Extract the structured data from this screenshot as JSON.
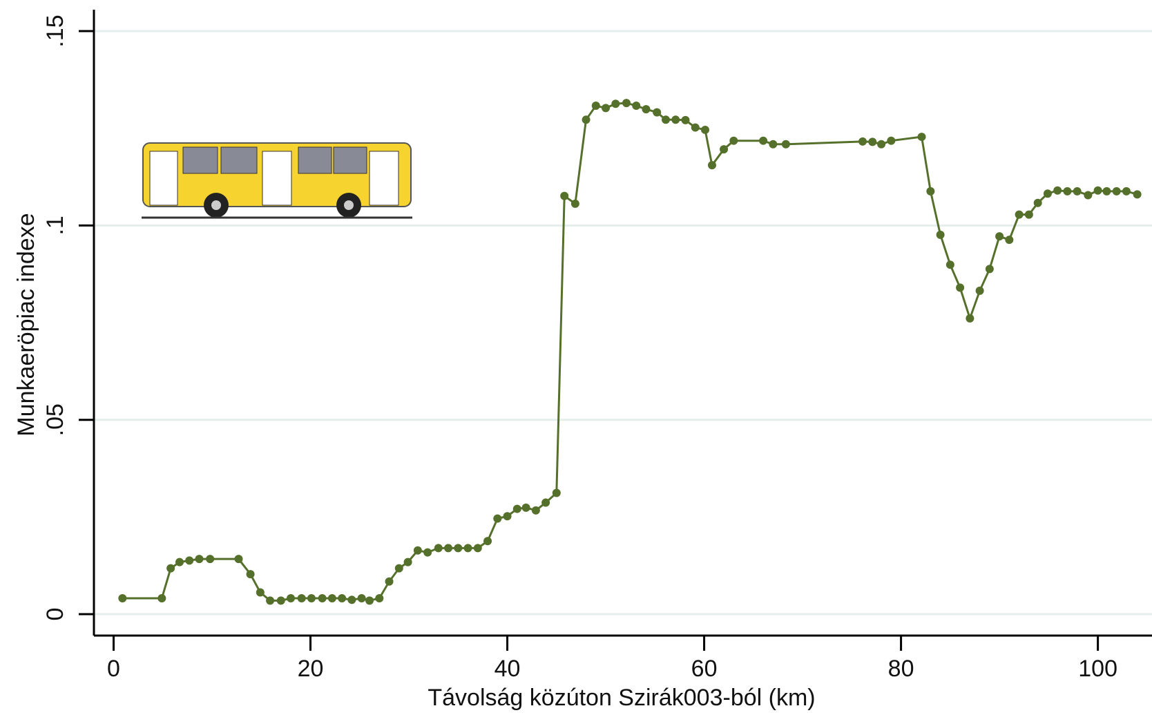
{
  "chart_data": {
    "type": "line",
    "x_label": "Távolság közúton Szirák003-ból (km)",
    "y_label": "Munkaeröpiac indexe",
    "x": [
      0.9,
      4.9,
      5.8,
      6.7,
      7.7,
      8.7,
      9.8,
      12.7,
      13.9,
      14.9,
      15.9,
      17.0,
      18.0,
      19.1,
      20.1,
      21.2,
      22.2,
      23.2,
      24.2,
      25.2,
      26.0,
      27.0,
      28.0,
      29.0,
      29.9,
      30.9,
      31.9,
      33.0,
      34.0,
      35.0,
      36.0,
      37.0,
      38.0,
      39.0,
      40.0,
      41.0,
      41.9,
      42.9,
      43.9,
      45.0,
      45.8,
      46.9,
      48.0,
      49.0,
      50.0,
      51.0,
      52.1,
      53.1,
      54.1,
      55.2,
      56.1,
      57.1,
      58.1,
      59.1,
      60.1,
      60.8,
      62.0,
      63.0,
      66.0,
      67.0,
      68.3,
      76.1,
      77.1,
      78.0,
      79.0,
      82.1,
      83.0,
      84.0,
      85.0,
      86.0,
      87.0,
      88.0,
      89.0,
      90.0,
      91.0,
      92.0,
      93.0,
      93.9,
      94.9,
      95.9,
      96.9,
      97.9,
      99.0,
      100.0,
      100.9,
      101.9,
      102.9,
      104.0
    ],
    "values": [
      0.0041,
      0.0041,
      0.0118,
      0.0134,
      0.0138,
      0.0142,
      0.0142,
      0.0142,
      0.0103,
      0.0056,
      0.0035,
      0.0035,
      0.0041,
      0.0041,
      0.0041,
      0.0041,
      0.0041,
      0.0041,
      0.0037,
      0.0041,
      0.0035,
      0.0041,
      0.0084,
      0.0118,
      0.0134,
      0.0164,
      0.0159,
      0.017,
      0.017,
      0.017,
      0.017,
      0.017,
      0.0188,
      0.0246,
      0.0252,
      0.0271,
      0.0274,
      0.0267,
      0.0287,
      0.0312,
      0.1076,
      0.1056,
      0.1272,
      0.1308,
      0.1302,
      0.1313,
      0.1315,
      0.1308,
      0.1299,
      0.1291,
      0.1272,
      0.1272,
      0.1271,
      0.1252,
      0.1246,
      0.1155,
      0.1196,
      0.1218,
      0.1218,
      0.1209,
      0.1209,
      0.1216,
      0.1215,
      0.1209,
      0.1218,
      0.1228,
      0.1088,
      0.0976,
      0.0899,
      0.084,
      0.0761,
      0.0832,
      0.0888,
      0.0972,
      0.0963,
      0.1028,
      0.1028,
      0.1058,
      0.1082,
      0.109,
      0.1088,
      0.1088,
      0.1078,
      0.109,
      0.1088,
      0.1088,
      0.1088,
      0.108
    ],
    "color": "#55702a",
    "xlim": [
      -2,
      105.5
    ],
    "xticks": [
      0,
      20,
      40,
      60,
      80,
      100
    ],
    "ylim": [
      -0.0055,
      0.158
    ],
    "yticks": [
      0,
      {
        "value": 0.05,
        "label": ".05"
      },
      {
        "value": 0.1,
        "label": ".1"
      },
      {
        "value": 0.15,
        "label": ".15"
      }
    ],
    "grid": true
  }
}
